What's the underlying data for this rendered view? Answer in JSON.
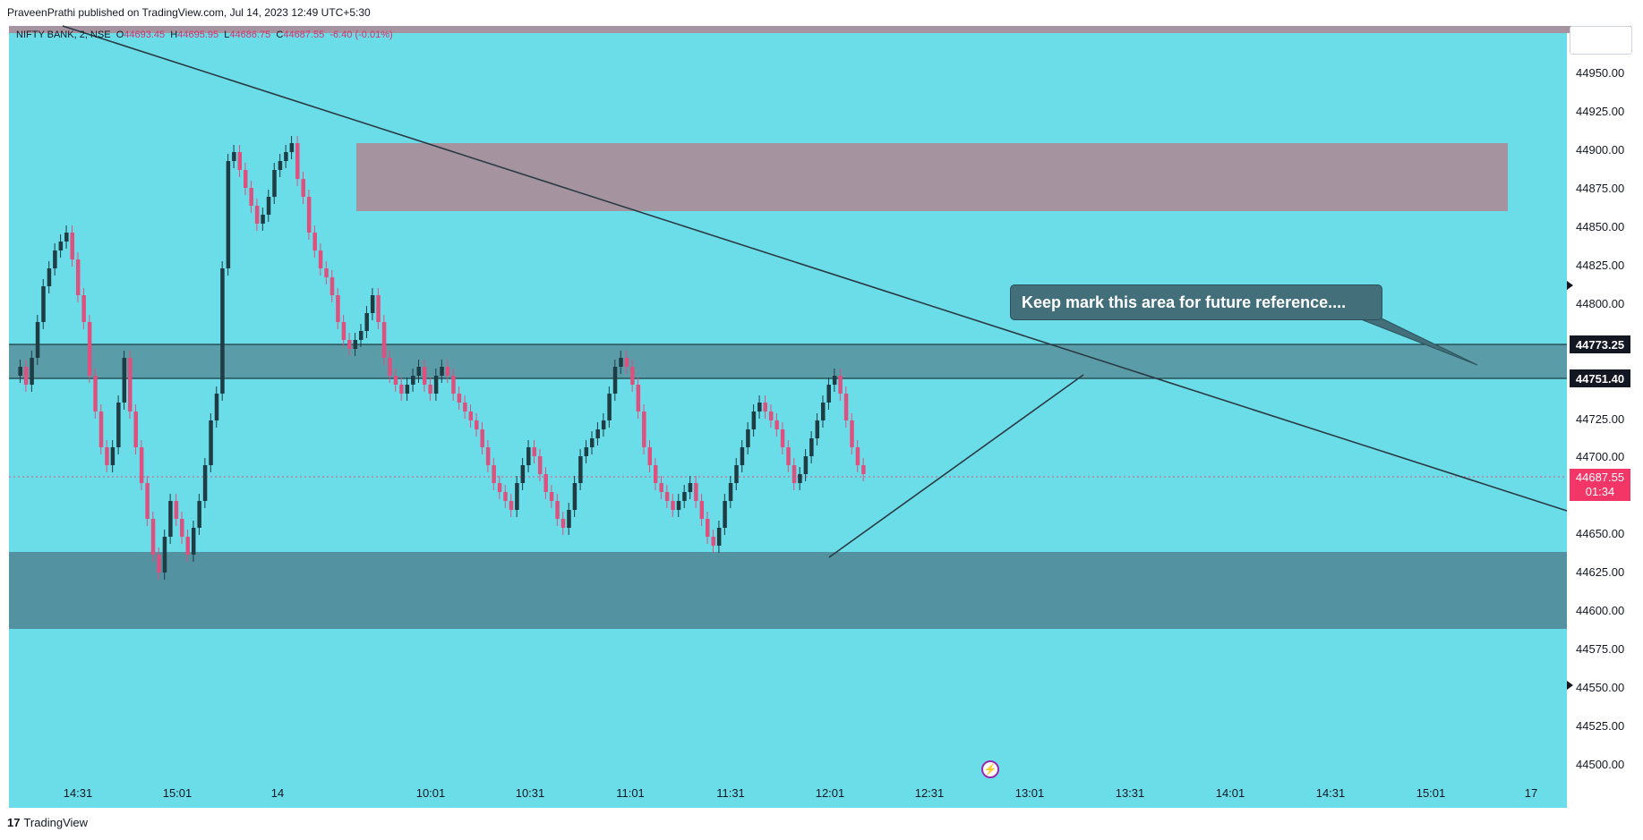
{
  "header": {
    "text": "PraveenPrathi published on TradingView.com, Jul 14, 2023 12:49 UTC+5:30"
  },
  "footer": {
    "logo": "17",
    "brand": "TradingView"
  },
  "legend": {
    "symbol": "NIFTY BANK, 2, NSE",
    "open_label": "O",
    "open": "44693.45",
    "high_label": "H",
    "high": "44695.95",
    "low_label": "L",
    "low": "44686.75",
    "close_label": "C",
    "close": "44687.55",
    "change": "-6.40 (-0.01%)"
  },
  "callout": {
    "text": "Keep mark this area for future reference...."
  },
  "price_tags": {
    "upper": "44773.25",
    "lower": "44751.40",
    "last_price": "44687.55",
    "countdown": "01:34"
  },
  "y_axis": [
    "44950.00",
    "44925.00",
    "44900.00",
    "44875.00",
    "44850.00",
    "44825.00",
    "44800.00",
    "44725.00",
    "44700.00",
    "44650.00",
    "44625.00",
    "44600.00",
    "44575.00",
    "44550.00",
    "44525.00",
    "44500.00"
  ],
  "x_axis": [
    "14:31",
    "15:01",
    "14",
    "10:01",
    "10:31",
    "11:01",
    "11:31",
    "12:01",
    "12:31",
    "13:01",
    "13:31",
    "14:01",
    "14:31",
    "15:01",
    "17"
  ],
  "colors": {
    "background": "#6bdde8",
    "up": "#1e3c44",
    "down": "#e0507e",
    "zone_dark": "#5392a0",
    "zone_pink": "#a594a0",
    "trendline": "#2a3a44"
  },
  "icons": [
    "flash-icon",
    "tradingview-logo-icon"
  ]
}
